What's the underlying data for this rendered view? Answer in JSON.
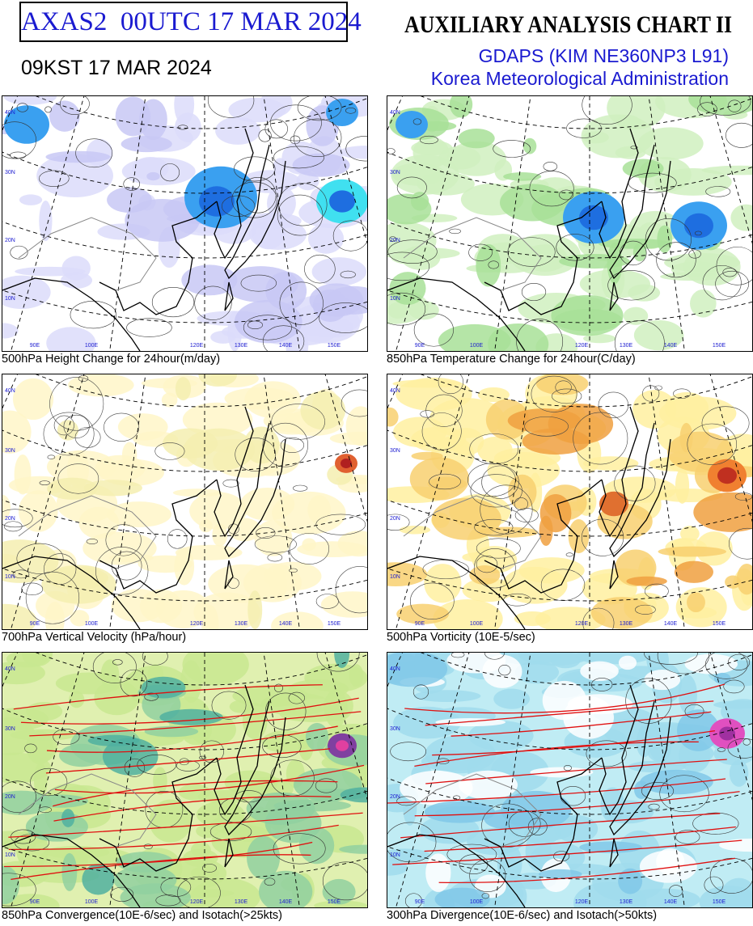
{
  "header": {
    "chart_id": "AXAS2  00UTC 17 MAR 2024",
    "local_time": "09KST 17 MAR 2024",
    "title": "AUXILIARY ANALYSIS CHART II",
    "model": "GDAPS (KIM NE360NP3 L91)",
    "agency": "Korea Meteorological Administration"
  },
  "map_labels": {
    "lat": [
      "40N",
      "30N",
      "20N",
      "10N"
    ],
    "lon": [
      "90E",
      "100E",
      "120E",
      "130E",
      "140E",
      "150E"
    ]
  },
  "panels": [
    {
      "caption": "500hPa Height Change for 24hour(m/day)"
    },
    {
      "caption": "850hPa Temperature Change for 24hour(C/day)"
    },
    {
      "caption": "700hPa Vertical Velocity (hPa/hour)"
    },
    {
      "caption": "500hPa Vorticity (10E-5/sec)"
    },
    {
      "caption": "850hPa Convergence(10E-6/sec) and Isotach(>25kts)"
    },
    {
      "caption": "300hPa Divergence(10E-6/sec) and Isotach(>50kts)"
    }
  ]
}
